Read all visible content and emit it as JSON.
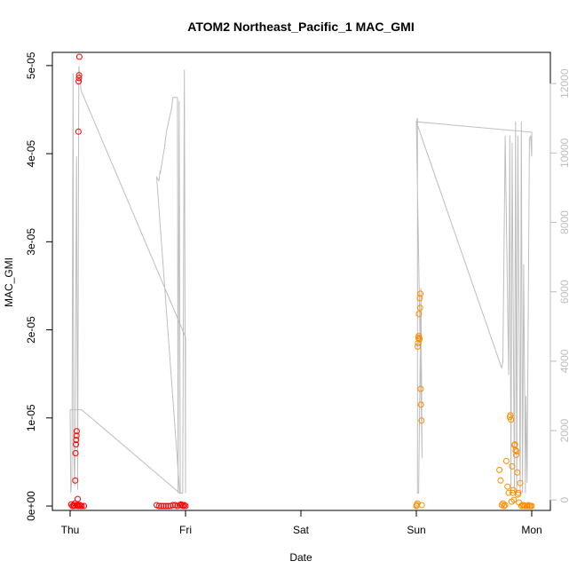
{
  "chart_data": {
    "type": "scatter",
    "title": "ATOM2 Northeast_Pacific_1 MAC_GMI",
    "xlabel": "Date",
    "ylabel": "MAC_GMI",
    "x_ticks": [
      "Thu",
      "Fri",
      "Sat",
      "Sun",
      "Mon"
    ],
    "xlim_days": [
      0,
      4
    ],
    "ylim": [
      -5e-07,
      5.15e-05
    ],
    "y_ticks": [
      {
        "value": 0,
        "label": "0e+00"
      },
      {
        "value": 1e-05,
        "label": "1e-05"
      },
      {
        "value": 2e-05,
        "label": "2e-05"
      },
      {
        "value": 3e-05,
        "label": "3e-05"
      },
      {
        "value": 4e-05,
        "label": "4e-05"
      },
      {
        "value": 5e-05,
        "label": "5e-05"
      }
    ],
    "y2lim": [
      -300,
      12900
    ],
    "y2_ticks": [
      0,
      2000,
      4000,
      6000,
      8000,
      10000,
      12000
    ],
    "y2_color": "#bebebe",
    "grid": false,
    "legend": "none",
    "series": [
      {
        "color": "#ff0000",
        "points": [
          [
            0.01,
            2e-07
          ],
          [
            0.02,
            0.0
          ],
          [
            0.03,
            1e-07
          ],
          [
            0.035,
            0.0
          ],
          [
            0.04,
            3e-07
          ],
          [
            0.045,
            2.9e-06
          ],
          [
            0.047,
            6e-06
          ],
          [
            0.05,
            7e-06
          ],
          [
            0.052,
            7.5e-06
          ],
          [
            0.055,
            8e-06
          ],
          [
            0.057,
            8.5e-06
          ],
          [
            0.06,
            1e-07
          ],
          [
            0.065,
            8e-07
          ],
          [
            0.068,
            1e-07
          ],
          [
            0.07,
            0.0
          ],
          [
            0.072,
            4.25e-05
          ],
          [
            0.074,
            4.82e-05
          ],
          [
            0.076,
            4.86e-05
          ],
          [
            0.078,
            4.89e-05
          ],
          [
            0.08,
            5.1e-05
          ],
          [
            0.085,
            1e-07
          ],
          [
            0.09,
            0.0
          ],
          [
            0.1,
            0.0
          ],
          [
            0.12,
            0.0
          ],
          [
            0.75,
            1e-07
          ],
          [
            0.77,
            0.0
          ],
          [
            0.79,
            0.0
          ],
          [
            0.81,
            0.0
          ],
          [
            0.83,
            0.0
          ],
          [
            0.85,
            0.0
          ],
          [
            0.87,
            0.0
          ],
          [
            0.89,
            1e-07
          ],
          [
            0.91,
            1e-07
          ],
          [
            0.93,
            0.0
          ],
          [
            0.95,
            1e-07
          ],
          [
            0.96,
            2e-07
          ],
          [
            0.97,
            1e-07
          ],
          [
            0.98,
            0.0
          ],
          [
            0.99,
            1e-07
          ],
          [
            1.0,
            0.0
          ]
        ]
      },
      {
        "color": "#ff8c00",
        "points": [
          [
            3.0,
            0.0
          ],
          [
            3.005,
            1e-07
          ],
          [
            3.01,
            3e-07
          ],
          [
            3.012,
            1.81e-05
          ],
          [
            3.015,
            1.85e-05
          ],
          [
            3.018,
            1.91e-05
          ],
          [
            3.02,
            1.93e-05
          ],
          [
            3.022,
            2.18e-05
          ],
          [
            3.025,
            1.89e-05
          ],
          [
            3.028,
            1.9e-05
          ],
          [
            3.03,
            2.36e-05
          ],
          [
            3.032,
            2.25e-05
          ],
          [
            3.035,
            2.41e-05
          ],
          [
            3.038,
            1.33e-05
          ],
          [
            3.04,
            1.15e-05
          ],
          [
            3.045,
            9.7e-06
          ],
          [
            3.048,
            1e-07
          ],
          [
            3.72,
            4.1e-06
          ],
          [
            3.73,
            2.9e-06
          ],
          [
            3.74,
            1e-07
          ],
          [
            3.75,
            3e-07
          ],
          [
            3.76,
            0.0
          ],
          [
            3.77,
            1e-07
          ],
          [
            3.78,
            5.1e-06
          ],
          [
            3.79,
            2.2e-06
          ],
          [
            3.8,
            1.5e-06
          ],
          [
            3.81,
            1.01e-05
          ],
          [
            3.815,
            1.03e-05
          ],
          [
            3.82,
            9.8e-06
          ],
          [
            3.825,
            5e-07
          ],
          [
            3.83,
            4.5e-06
          ],
          [
            3.835,
            1.5e-06
          ],
          [
            3.84,
            1.8e-06
          ],
          [
            3.845,
            7e-07
          ],
          [
            3.85,
            6.9e-06
          ],
          [
            3.855,
            7e-06
          ],
          [
            3.86,
            6.3e-06
          ],
          [
            3.865,
            5.8e-06
          ],
          [
            3.87,
            6.2e-06
          ],
          [
            3.875,
            3.8e-06
          ],
          [
            3.88,
            1.3e-06
          ],
          [
            3.885,
            1.5e-06
          ],
          [
            3.89,
            4e-07
          ],
          [
            3.9,
            2.6e-06
          ],
          [
            3.91,
            0.0
          ],
          [
            3.92,
            1e-07
          ],
          [
            3.93,
            1e-07
          ],
          [
            3.94,
            0.0
          ],
          [
            3.96,
            0.0
          ],
          [
            3.97,
            1e-07
          ],
          [
            3.98,
            0.0
          ],
          [
            3.99,
            0.0
          ],
          [
            4.0,
            0.0
          ]
        ]
      }
    ],
    "secondary_line": {
      "color": "#bebebe",
      "axis": "right",
      "segments": [
        [
          [
            0.0,
            2600
          ],
          [
            0.005,
            200
          ],
          [
            0.015,
            600
          ],
          [
            0.025,
            12300
          ],
          [
            0.03,
            1500
          ],
          [
            0.04,
            400
          ],
          [
            0.055,
            9900
          ],
          [
            0.065,
            300
          ],
          [
            0.075,
            12500
          ],
          [
            0.085,
            12200
          ],
          [
            0.095,
            11800
          ],
          [
            1.0,
            4700
          ],
          [
            1.0,
            200
          ],
          [
            0.99,
            12400
          ],
          [
            0.975,
            200
          ],
          [
            0.955,
            200
          ],
          [
            0.945,
            11500
          ],
          [
            0.935,
            200
          ],
          [
            0.93,
            11600
          ],
          [
            0.89,
            11600
          ],
          [
            0.88,
            11300
          ],
          [
            0.86,
            11000
          ],
          [
            0.84,
            10700
          ],
          [
            0.83,
            10500
          ],
          [
            0.82,
            10200
          ],
          [
            0.78,
            9400
          ],
          [
            0.78,
            9500
          ],
          [
            0.77,
            9200
          ],
          [
            0.75,
            9300
          ],
          [
            0.95,
            200
          ],
          [
            0.1,
            2600
          ],
          [
            0.0,
            2600
          ]
        ],
        [
          [
            3.0,
            10900
          ],
          [
            3.01,
            11000
          ],
          [
            3.01,
            200
          ],
          [
            3.02,
            200
          ],
          [
            3.04,
            6100
          ],
          [
            3.05,
            1200
          ],
          [
            3.0,
            10900
          ],
          [
            4.0,
            10600
          ],
          [
            4.0,
            9900
          ],
          [
            3.99,
            10500
          ],
          [
            3.98,
            10400
          ],
          [
            3.96,
            500
          ],
          [
            3.95,
            3000
          ],
          [
            3.945,
            200
          ],
          [
            3.93,
            6800
          ],
          [
            3.92,
            200
          ],
          [
            3.91,
            10900
          ],
          [
            3.9,
            200
          ],
          [
            3.88,
            10500
          ],
          [
            3.87,
            200
          ],
          [
            3.86,
            10900
          ],
          [
            3.85,
            200
          ],
          [
            3.83,
            10300
          ],
          [
            3.82,
            200
          ],
          [
            3.81,
            10500
          ],
          [
            3.8,
            3600
          ],
          [
            3.77,
            10500
          ],
          [
            3.75,
            4000
          ],
          [
            3.74,
            3800
          ],
          [
            3.0,
            10900
          ]
        ]
      ]
    }
  }
}
